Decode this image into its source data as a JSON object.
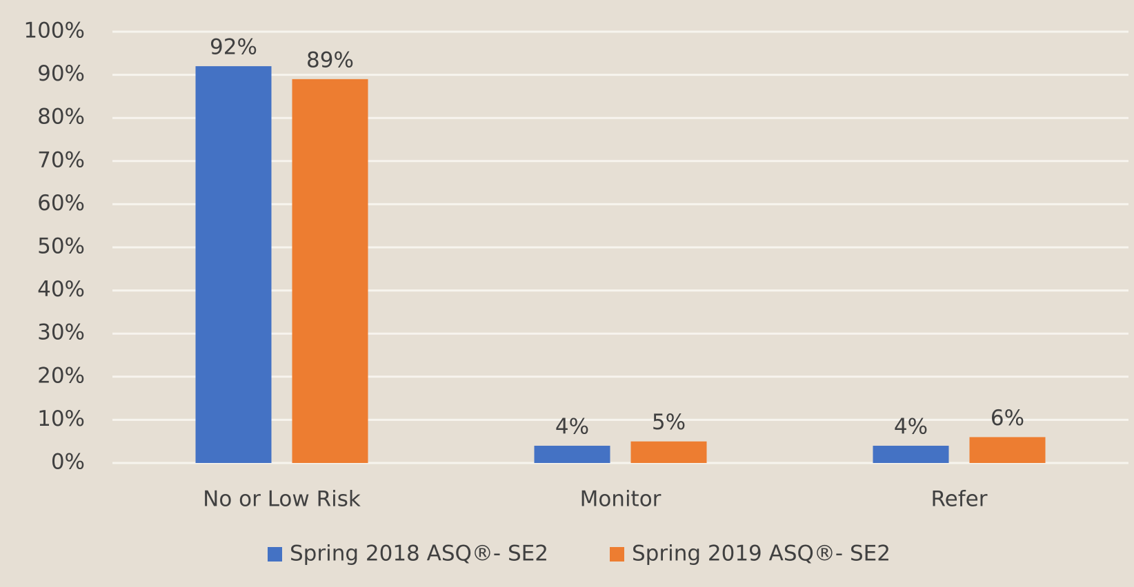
{
  "chart_data": {
    "type": "bar",
    "categories": [
      "No or Low Risk",
      "Monitor",
      "Refer"
    ],
    "series": [
      {
        "name": "Spring 2018 ASQ®- SE2",
        "color": "#4472c4",
        "values": [
          92,
          4,
          4
        ],
        "value_labels": [
          "92%",
          "4%",
          "4%"
        ]
      },
      {
        "name": "Spring 2019 ASQ®- SE2",
        "color": "#ed7d31",
        "values": [
          89,
          5,
          6
        ],
        "value_labels": [
          "89%",
          "5%",
          "6%"
        ]
      }
    ],
    "ylim": [
      0,
      100
    ],
    "yticks": [
      {
        "value": 0,
        "label": "0%"
      },
      {
        "value": 10,
        "label": "10%"
      },
      {
        "value": 20,
        "label": "20%"
      },
      {
        "value": 30,
        "label": "30%"
      },
      {
        "value": 40,
        "label": "40%"
      },
      {
        "value": 50,
        "label": "50%"
      },
      {
        "value": 60,
        "label": "60%"
      },
      {
        "value": 70,
        "label": "70%"
      },
      {
        "value": 80,
        "label": "80%"
      },
      {
        "value": 90,
        "label": "90%"
      },
      {
        "value": 100,
        "label": "100%"
      }
    ],
    "grid": true,
    "legend": "bottom"
  }
}
